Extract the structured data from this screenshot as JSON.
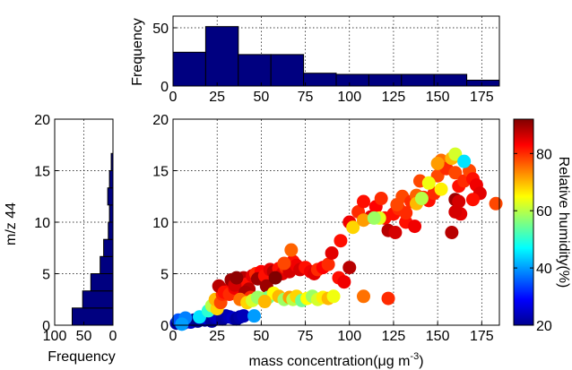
{
  "colors": {
    "bar_fill": "#000080",
    "bar_edge": "#000000",
    "frame": "#000000"
  },
  "chart_data": [
    {
      "id": "top-histogram",
      "type": "bar",
      "xlabel": "",
      "ylabel": "Frequency",
      "xlim": [
        0,
        185
      ],
      "ylim": [
        0,
        60
      ],
      "xticks": [
        0,
        25,
        50,
        75,
        100,
        125,
        150,
        175
      ],
      "yticks": [
        0,
        50
      ],
      "bin_edges": [
        0,
        18.5,
        37,
        55.5,
        74,
        92.5,
        111,
        129.5,
        148,
        166.5,
        185
      ],
      "values": [
        29,
        51,
        27,
        27,
        11,
        10,
        10,
        10,
        10,
        5
      ],
      "grid": true
    },
    {
      "id": "side-histogram",
      "type": "bar",
      "orientation": "horizontal",
      "xlabel": "Frequency",
      "ylabel": "m/z 44",
      "xlim": [
        100,
        0
      ],
      "ylim": [
        0,
        20
      ],
      "xticks": [
        100,
        50,
        0
      ],
      "yticks": [
        0,
        5,
        10,
        15,
        20
      ],
      "bin_edges": [
        0,
        1.67,
        3.33,
        5.0,
        6.67,
        8.33,
        10.0,
        11.67,
        13.33,
        15.0,
        16.67
      ],
      "values": [
        70,
        52,
        38,
        22,
        16,
        8,
        6,
        9,
        6,
        3
      ],
      "grid": true
    },
    {
      "id": "main-scatter",
      "type": "scatter",
      "xlabel": "mass concentration(μg m",
      "xlabel_sup": "-3",
      "xlabel_end": ")",
      "ylabel": "",
      "xlim": [
        0,
        185
      ],
      "ylim": [
        0,
        20
      ],
      "xticks": [
        0,
        25,
        50,
        75,
        100,
        125,
        150,
        175
      ],
      "yticks": [
        0,
        5,
        10,
        15,
        20
      ],
      "grid": true,
      "colorbar": {
        "label": "Relative humidity(%)",
        "min": 20,
        "max": 92,
        "ticks": [
          20,
          40,
          60,
          80
        ],
        "colormap": "jet"
      },
      "points": [
        [
          2,
          0.2,
          22
        ],
        [
          4,
          0.3,
          24
        ],
        [
          6,
          0.2,
          21
        ],
        [
          8,
          0.4,
          23
        ],
        [
          10,
          0.3,
          25
        ],
        [
          12,
          0.5,
          22
        ],
        [
          14,
          0.4,
          21
        ],
        [
          16,
          0.6,
          24
        ],
        [
          18,
          0.5,
          23
        ],
        [
          20,
          0.6,
          26
        ],
        [
          22,
          0.4,
          22
        ],
        [
          24,
          0.8,
          24
        ],
        [
          26,
          0.7,
          25
        ],
        [
          28,
          0.6,
          22
        ],
        [
          30,
          0.9,
          23
        ],
        [
          32,
          0.8,
          24
        ],
        [
          34,
          0.7,
          25
        ],
        [
          36,
          0.6,
          22
        ],
        [
          38,
          0.8,
          23
        ],
        [
          40,
          0.9,
          24
        ],
        [
          46,
          0.9,
          40
        ],
        [
          3,
          0.5,
          35
        ],
        [
          7,
          0.7,
          38
        ],
        [
          15,
          0.8,
          45
        ],
        [
          5,
          0.1,
          40
        ],
        [
          20,
          1.4,
          50
        ],
        [
          22,
          1.9,
          60
        ],
        [
          25,
          1.6,
          68
        ],
        [
          24,
          2.5,
          70
        ],
        [
          27,
          2.2,
          78
        ],
        [
          28,
          3.0,
          80
        ],
        [
          30,
          3.4,
          85
        ],
        [
          26,
          3.8,
          88
        ],
        [
          29,
          3.2,
          82
        ],
        [
          32,
          3.0,
          80
        ],
        [
          35,
          3.6,
          84
        ],
        [
          38,
          4.2,
          85
        ],
        [
          40,
          4.6,
          88
        ],
        [
          42,
          4.0,
          82
        ],
        [
          45,
          4.8,
          85
        ],
        [
          47,
          5.0,
          80
        ],
        [
          50,
          5.2,
          83
        ],
        [
          48,
          4.5,
          90
        ],
        [
          52,
          4.8,
          82
        ],
        [
          55,
          5.4,
          85
        ],
        [
          57,
          5.2,
          88
        ],
        [
          60,
          5.5,
          82
        ],
        [
          62,
          5.0,
          85
        ],
        [
          64,
          5.6,
          80
        ],
        [
          66,
          5.2,
          86
        ],
        [
          68,
          6.2,
          82
        ],
        [
          70,
          5.8,
          84
        ],
        [
          72,
          5.4,
          86
        ],
        [
          75,
          5.6,
          82
        ],
        [
          78,
          5.2,
          84
        ],
        [
          80,
          5.0,
          85
        ],
        [
          82,
          5.4,
          80
        ],
        [
          85,
          5.6,
          83
        ],
        [
          88,
          5.9,
          80
        ],
        [
          90,
          7.0,
          85
        ],
        [
          94,
          4.6,
          82
        ],
        [
          97,
          4.2,
          84
        ],
        [
          100,
          5.6,
          88
        ],
        [
          33,
          4.4,
          90
        ],
        [
          35,
          3.9,
          86
        ],
        [
          43,
          3.5,
          88
        ],
        [
          53,
          3.8,
          90
        ],
        [
          58,
          4.6,
          92
        ],
        [
          63,
          6.0,
          78
        ],
        [
          67,
          7.3,
          76
        ],
        [
          36,
          4.6,
          91
        ],
        [
          41,
          3.2,
          89
        ],
        [
          44,
          2.7,
          80
        ],
        [
          50,
          2.6,
          62
        ],
        [
          54,
          2.7,
          55
        ],
        [
          57,
          3.1,
          65
        ],
        [
          60,
          2.8,
          70
        ],
        [
          63,
          2.5,
          58
        ],
        [
          66,
          2.7,
          72
        ],
        [
          68,
          2.5,
          60
        ],
        [
          70,
          2.8,
          68
        ],
        [
          73,
          2.4,
          55
        ],
        [
          76,
          2.6,
          65
        ],
        [
          79,
          2.8,
          58
        ],
        [
          82,
          2.5,
          62
        ],
        [
          85,
          2.7,
          66
        ],
        [
          88,
          2.6,
          70
        ],
        [
          91,
          2.8,
          64
        ],
        [
          38,
          2.5,
          75
        ],
        [
          42,
          2.2,
          68
        ],
        [
          45,
          2.4,
          62
        ],
        [
          48,
          2.7,
          58
        ],
        [
          52,
          2.3,
          70
        ],
        [
          108,
          2.8,
          75
        ],
        [
          122,
          2.6,
          80
        ],
        [
          95,
          8.2,
          82
        ],
        [
          100,
          10.0,
          84
        ],
        [
          105,
          11.0,
          80
        ],
        [
          108,
          12.0,
          82
        ],
        [
          112,
          10.5,
          85
        ],
        [
          115,
          11.5,
          83
        ],
        [
          118,
          12.3,
          80
        ],
        [
          120,
          10.4,
          82
        ],
        [
          122,
          9.2,
          88
        ],
        [
          125,
          10.8,
          82
        ],
        [
          128,
          11.3,
          80
        ],
        [
          130,
          12.5,
          78
        ],
        [
          132,
          10.0,
          82
        ],
        [
          135,
          12.0,
          80
        ],
        [
          138,
          12.6,
          76
        ],
        [
          140,
          14.0,
          78
        ],
        [
          142,
          12.4,
          80
        ],
        [
          145,
          12.1,
          82
        ],
        [
          148,
          12.8,
          80
        ],
        [
          150,
          14.5,
          78
        ],
        [
          152,
          16.0,
          75
        ],
        [
          155,
          15.2,
          80
        ],
        [
          158,
          16.2,
          70
        ],
        [
          160,
          14.8,
          78
        ],
        [
          162,
          13.5,
          82
        ],
        [
          165,
          14.0,
          80
        ],
        [
          168,
          15.0,
          78
        ],
        [
          170,
          14.2,
          82
        ],
        [
          172,
          13.6,
          84
        ],
        [
          174,
          12.8,
          85
        ],
        [
          160,
          12.2,
          90
        ],
        [
          162,
          12.0,
          86
        ],
        [
          158,
          9.0,
          88
        ],
        [
          163,
          10.8,
          85
        ],
        [
          160,
          11.0,
          86
        ],
        [
          170,
          12.2,
          82
        ],
        [
          183,
          11.8,
          78
        ],
        [
          138,
          11.8,
          70
        ],
        [
          145,
          13.8,
          64
        ],
        [
          141,
          12.3,
          60
        ],
        [
          160,
          16.6,
          62
        ],
        [
          165,
          15.9,
          45
        ],
        [
          150,
          15.7,
          72
        ],
        [
          102,
          9.5,
          68
        ],
        [
          108,
          10.2,
          72
        ],
        [
          117,
          10.4,
          63
        ],
        [
          152,
          13.2,
          66
        ],
        [
          126,
          9.0,
          86
        ],
        [
          137,
          9.6,
          84
        ],
        [
          132,
          10.9,
          80
        ],
        [
          114,
          10.4,
          58
        ],
        [
          127,
          11.7,
          78
        ]
      ]
    }
  ]
}
